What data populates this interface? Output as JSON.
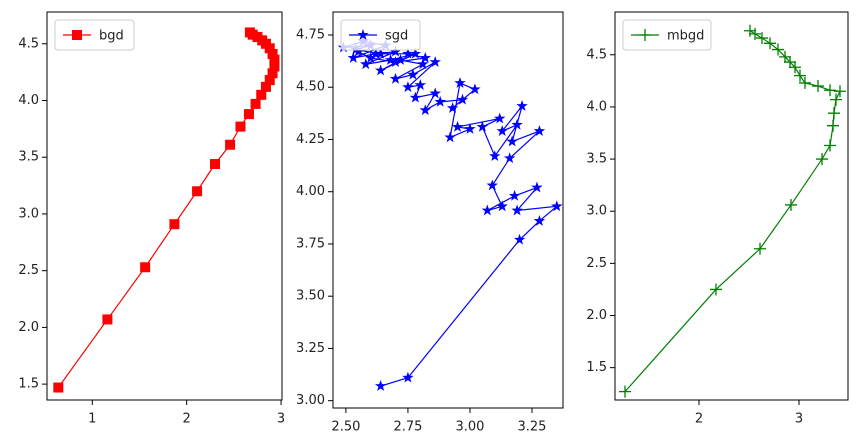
{
  "chart_data": [
    {
      "type": "line",
      "legend": "upper left",
      "x": [
        0.64,
        1.16,
        1.56,
        1.87,
        2.11,
        2.3,
        2.46,
        2.57,
        2.66,
        2.73,
        2.79,
        2.84,
        2.88,
        2.91,
        2.93,
        2.93,
        2.91,
        2.88,
        2.84,
        2.8,
        2.75,
        2.7,
        2.67
      ],
      "series": [
        {
          "name": "bgd",
          "color": "#ff0000",
          "marker": "square",
          "values": [
            1.47,
            2.07,
            2.53,
            2.91,
            3.2,
            3.44,
            3.61,
            3.77,
            3.88,
            3.97,
            4.05,
            4.12,
            4.18,
            4.24,
            4.3,
            4.36,
            4.41,
            4.46,
            4.5,
            4.53,
            4.56,
            4.58,
            4.6
          ]
        }
      ],
      "xlim": [
        0.52,
        3.01
      ],
      "ylim": [
        1.36,
        4.78
      ],
      "xticks": [
        1,
        2,
        3
      ],
      "yticks": [
        1.5,
        {
          "value": 2,
          "label": "2.0"
        },
        2.5,
        {
          "value": 3,
          "label": "3.0"
        },
        3.5,
        {
          "value": 4,
          "label": "4.0"
        },
        4.5
      ]
    },
    {
      "type": "line",
      "legend": "upper left",
      "x": [
        2.64,
        2.75,
        3.2,
        3.28,
        3.35,
        3.19,
        3.27,
        3.18,
        3.07,
        3.13,
        3.09,
        3.16,
        3.28,
        3.17,
        3.21,
        3.13,
        3.19,
        3.1,
        3.05,
        3.12,
        2.95,
        3.0,
        2.92,
        2.96,
        3.02,
        2.93,
        2.97,
        2.88,
        2.82,
        2.86,
        2.78,
        2.8,
        2.75,
        2.86,
        2.77,
        2.7,
        2.81,
        2.72,
        2.64,
        2.78,
        2.68,
        2.58,
        2.7,
        2.62,
        2.53,
        2.66,
        2.57,
        2.49,
        2.6,
        2.54,
        2.64,
        2.75,
        2.82,
        2.7,
        2.6,
        2.55
      ],
      "series": [
        {
          "name": "sgd",
          "color": "#0000ff",
          "marker": "star",
          "values": [
            3.07,
            3.11,
            3.77,
            3.86,
            3.93,
            3.91,
            4.02,
            3.98,
            3.91,
            3.93,
            4.03,
            4.16,
            4.29,
            4.24,
            4.41,
            4.29,
            4.32,
            4.17,
            4.31,
            4.35,
            4.31,
            4.3,
            4.26,
            4.52,
            4.49,
            4.4,
            4.44,
            4.43,
            4.39,
            4.47,
            4.45,
            4.51,
            4.5,
            4.62,
            4.56,
            4.54,
            4.61,
            4.63,
            4.58,
            4.66,
            4.63,
            4.61,
            4.67,
            4.66,
            4.64,
            4.7,
            4.72,
            4.69,
            4.7,
            4.68,
            4.66,
            4.66,
            4.64,
            4.62,
            4.64,
            4.67
          ]
        }
      ],
      "xlim": [
        2.448,
        3.375
      ],
      "ylim": [
        2.965,
        4.86
      ],
      "xticks": [
        {
          "value": 2.5,
          "label": "2.50"
        },
        2.75,
        {
          "value": 3,
          "label": "3.00"
        },
        3.25
      ],
      "yticks": [
        {
          "value": 3,
          "label": "3.00"
        },
        3.25,
        {
          "value": 3.5,
          "label": "3.50"
        },
        3.75,
        {
          "value": 4,
          "label": "4.00"
        },
        4.25,
        {
          "value": 4.5,
          "label": "4.50"
        },
        4.75
      ]
    },
    {
      "type": "line",
      "legend": "upper left",
      "x": [
        1.26,
        2.17,
        2.61,
        2.92,
        3.23,
        3.31,
        3.34,
        3.35,
        3.37,
        3.41,
        3.31,
        3.19,
        3.06,
        3.01,
        2.96,
        2.91,
        2.86,
        2.79,
        2.71,
        2.63,
        2.56,
        2.51
      ],
      "series": [
        {
          "name": "mbgd",
          "color": "#008000",
          "marker": "plus",
          "values": [
            1.27,
            2.25,
            2.64,
            3.06,
            3.5,
            3.63,
            3.82,
            3.94,
            4.07,
            4.15,
            4.16,
            4.2,
            4.23,
            4.3,
            4.38,
            4.43,
            4.48,
            4.55,
            4.61,
            4.66,
            4.7,
            4.73
          ]
        }
      ],
      "xlim": [
        1.16,
        3.49
      ],
      "ylim": [
        1.19,
        4.91
      ],
      "xticks": [
        2,
        3
      ],
      "yticks": [
        1.5,
        {
          "value": 2,
          "label": "2.0"
        },
        2.5,
        {
          "value": 3,
          "label": "3.0"
        },
        3.5,
        {
          "value": 4,
          "label": "4.0"
        },
        4.5
      ]
    }
  ]
}
